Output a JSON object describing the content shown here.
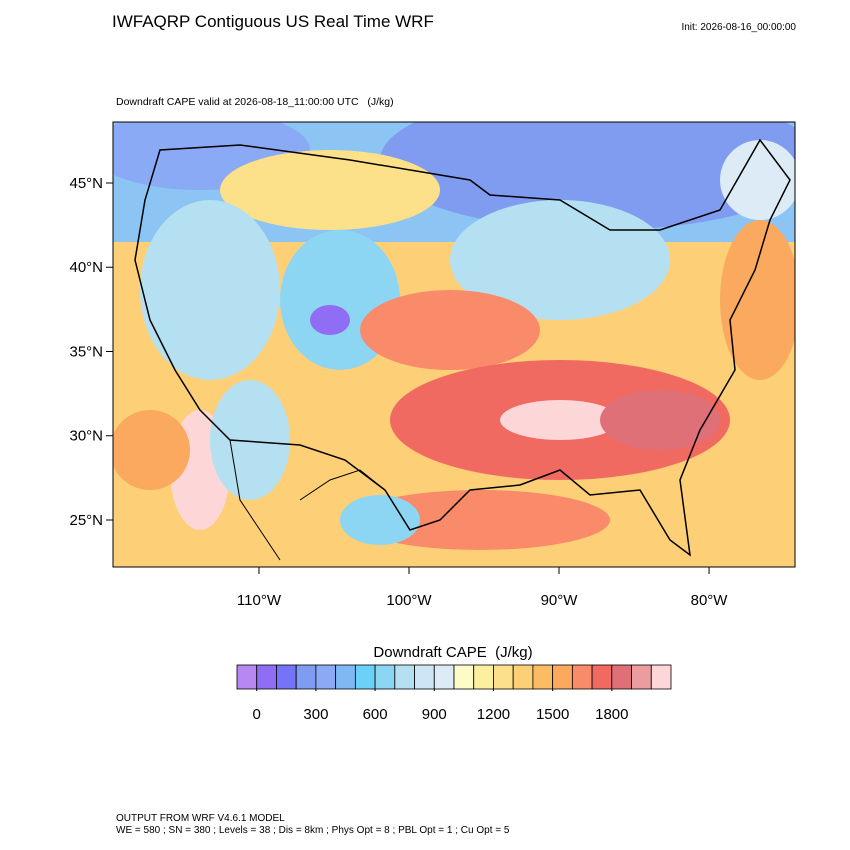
{
  "header": {
    "title": "IWFAQRP Contiguous US Real Time WRF",
    "init": "Init: 2026-08-16_00:00:00"
  },
  "map": {
    "subtitle": "Downdraft CAPE valid at 2026-08-18_11:00:00 UTC   (J/kg)",
    "lonlim": [
      -119.73,
      -74.27
    ],
    "latlim": [
      22.21,
      48.62
    ],
    "latticks": [
      {
        "value": 45,
        "label": "45°N"
      },
      {
        "value": 40,
        "label": "40°N"
      },
      {
        "value": 35,
        "label": "35°N"
      },
      {
        "value": 30,
        "label": "30°N"
      },
      {
        "value": 25,
        "label": "25°N"
      }
    ],
    "lonticks": [
      {
        "value": -110,
        "label": "110°W"
      },
      {
        "value": -100,
        "label": "100°W"
      },
      {
        "value": -90,
        "label": "90°W"
      },
      {
        "value": -80,
        "label": "80°W"
      }
    ]
  },
  "colorbar": {
    "title": "Downdraft CAPE  (J/kg)",
    "range": [
      -100,
      2100
    ],
    "ticks": [
      0,
      300,
      600,
      900,
      1200,
      1500,
      1800
    ],
    "colors": [
      "#b888f2",
      "#8f6ef5",
      "#7474fb",
      "#7f9cf0",
      "#8aaaf5",
      "#7fb8f5",
      "#6ad2f8",
      "#8cd6f3",
      "#b4e0f2",
      "#cce6f5",
      "#dcebf5",
      "#fdfbc8",
      "#fdefa0",
      "#fde08a",
      "#fdd078",
      "#fdbc64",
      "#fba95e",
      "#f98a6a",
      "#f06a62",
      "#e07078",
      "#ec9c9e",
      "#fdd7d8"
    ]
  },
  "footer": {
    "line1": "OUTPUT FROM WRF V4.6.1 MODEL",
    "line2": "WE = 580 ; SN = 380 ; Levels = 38 ; Dis = 8km ; Phys Opt = 8 ; PBL Opt = 1 ; Cu Opt = 5"
  }
}
